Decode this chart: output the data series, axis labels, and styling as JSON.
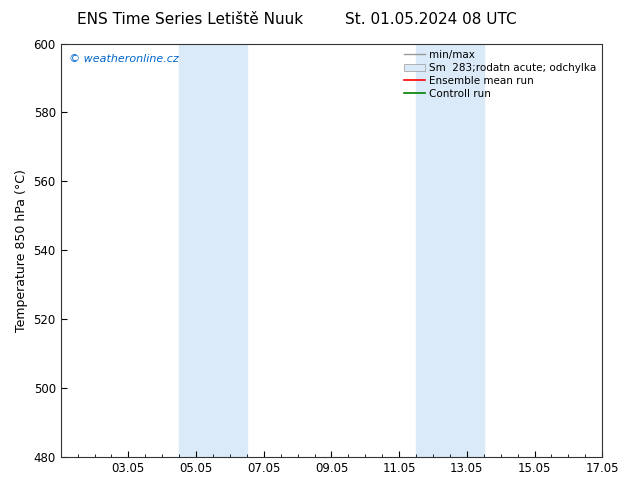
{
  "title": "ENS Time Series Letiště Nuuk",
  "title_right": "St. 01.05.2024 08 UTC",
  "ylabel": "Temperature 850 hPa (°C)",
  "ylim": [
    480,
    600
  ],
  "yticks": [
    480,
    500,
    520,
    540,
    560,
    580,
    600
  ],
  "x_min": 0,
  "x_max": 16,
  "xtick_labels": [
    "03.05",
    "05.05",
    "07.05",
    "09.05",
    "11.05",
    "13.05",
    "15.05",
    "17.05"
  ],
  "xtick_positions_days": [
    2,
    4,
    6,
    8,
    10,
    12,
    14,
    16
  ],
  "blue_bands": [
    {
      "start_day": 3.5,
      "end_day": 5.5
    },
    {
      "start_day": 10.5,
      "end_day": 12.5
    }
  ],
  "band_color": "#daeaf8",
  "watermark_text": "© weatheronline.cz",
  "watermark_color": "#0066cc",
  "legend_entries": [
    {
      "label": "min/max",
      "color": "#999999",
      "type": "line"
    },
    {
      "label": "Sm  283;rodatn acute; odchylka",
      "color": "#daeaf8",
      "type": "patch"
    },
    {
      "label": "Ensemble mean run",
      "color": "red",
      "type": "line"
    },
    {
      "label": "Controll run",
      "color": "green",
      "type": "line"
    }
  ],
  "bg_color": "#ffffff",
  "title_fontsize": 11,
  "axis_fontsize": 9,
  "tick_fontsize": 8.5,
  "legend_fontsize": 7.5
}
